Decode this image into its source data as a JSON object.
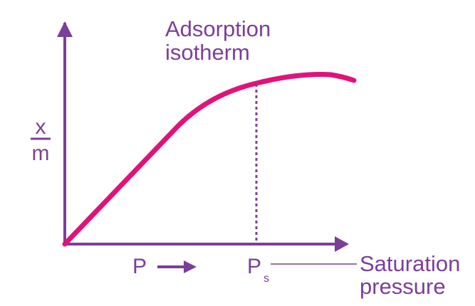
{
  "title_line1": "Adsorption",
  "title_line2": "isotherm",
  "y_label_numerator": "x",
  "y_label_denominator": "m",
  "x_label": "P",
  "ps_label_main": "P",
  "ps_label_sub": "s",
  "note_line1": "Saturation",
  "note_line2": "pressure",
  "colors": {
    "axis": "#7b3f99",
    "curve": "#e0137a",
    "dotted": "#7b3f99",
    "text": "#7b3f99"
  },
  "icons": {
    "x_arrow": "right-arrow-icon"
  }
}
